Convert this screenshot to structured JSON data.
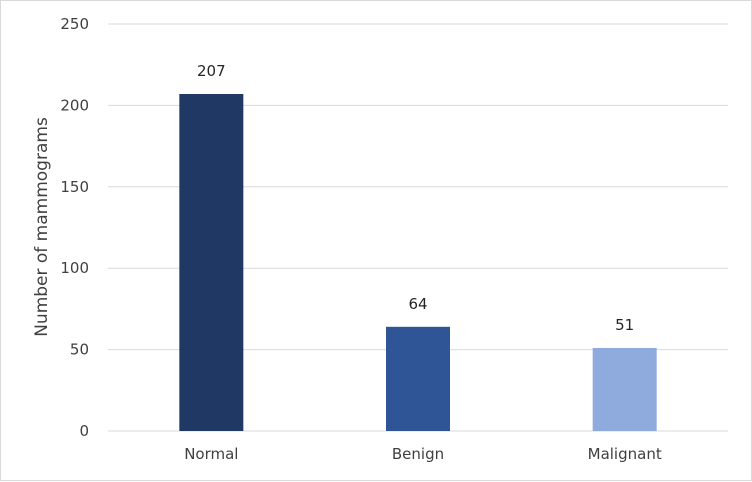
{
  "chart_data": {
    "type": "bar",
    "categories": [
      "Normal",
      "Benign",
      "Malignant"
    ],
    "values": [
      207,
      64,
      51
    ],
    "data_labels": [
      "207",
      "64",
      "51"
    ],
    "colors": [
      "#203864",
      "#2f5597",
      "#8faadc"
    ],
    "title": "",
    "xlabel": "",
    "ylabel": "Number of mammograms",
    "ylim": [
      0,
      250
    ],
    "yticks": [
      0,
      50,
      100,
      150,
      200,
      250
    ],
    "ytick_labels": [
      "0",
      "50",
      "100",
      "150",
      "200",
      "250"
    ],
    "grid": true,
    "grid_color": "#d9d9d9",
    "legend": "none"
  }
}
